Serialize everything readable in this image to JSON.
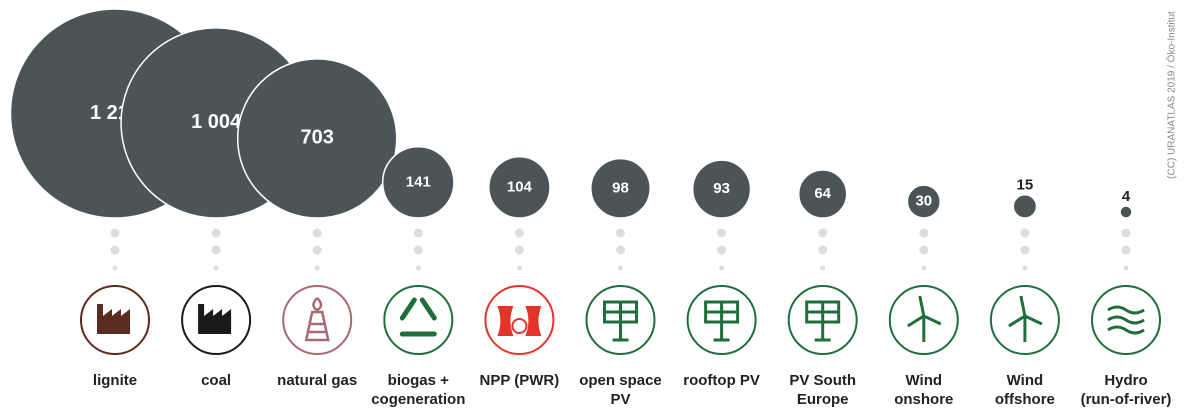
{
  "chart_data": {
    "type": "bubble",
    "categories": [
      "lignite",
      "coal",
      "natural gas",
      "biogas +\ncogeneration",
      "NPP (PWR)",
      "open space\nPV",
      "rooftop PV",
      "PV South\nEurope",
      "Wind\nonshore",
      "Wind\noffshore",
      "Hydro\n(run-of-river)"
    ],
    "values": [
      1214,
      1004,
      703,
      141,
      104,
      98,
      93,
      64,
      30,
      15,
      4
    ],
    "value_labels": [
      "1 214",
      "1 004",
      "703",
      "141",
      "104",
      "98",
      "93",
      "64",
      "30",
      "15",
      "4"
    ],
    "color": "#4b5558",
    "icon_colors": [
      "#5b2b1f",
      "#1a1a1a",
      "#a86a72",
      "#1f6e3b",
      "#e5332a",
      "#1f6e3b",
      "#1f6e3b",
      "#1f6e3b",
      "#1f6e3b",
      "#1f6e3b",
      "#1f6e3b"
    ],
    "credit": "(CC) URANATLAS 2019 / Öko-Institut"
  }
}
